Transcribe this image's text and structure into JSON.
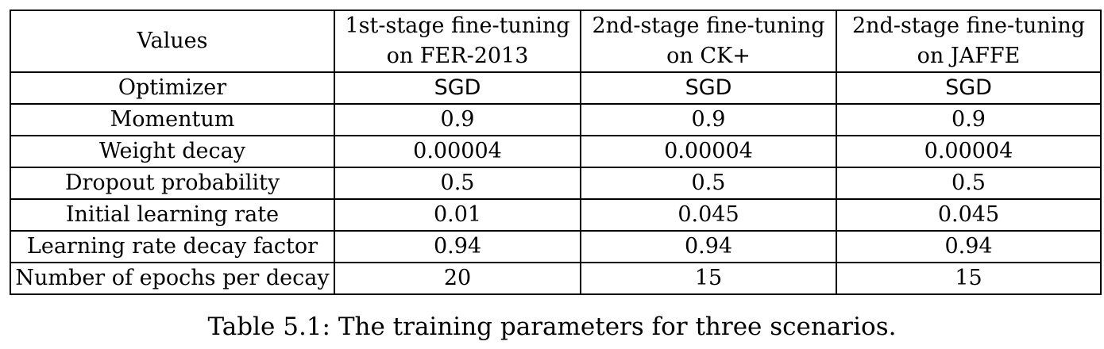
{
  "table": {
    "headers": [
      {
        "line1": "Values",
        "line2": ""
      },
      {
        "line1": "1st-stage fine-tuning",
        "line2": "on FER-2013"
      },
      {
        "line1": "2nd-stage fine-tuning",
        "line2": "on CK+"
      },
      {
        "line1": "2nd-stage fine-tuning",
        "line2": "on JAFFE"
      }
    ],
    "rows": [
      {
        "label": "Optimizer",
        "values": [
          "SGD",
          "SGD",
          "SGD"
        ]
      },
      {
        "label": "Momentum",
        "values": [
          "0.9",
          "0.9",
          "0.9"
        ]
      },
      {
        "label": "Weight decay",
        "values": [
          "0.00004",
          "0.00004",
          "0.00004"
        ]
      },
      {
        "label": "Dropout probability",
        "values": [
          "0.5",
          "0.5",
          "0.5"
        ]
      },
      {
        "label": "Initial learning rate",
        "values": [
          "0.01",
          "0.045",
          "0.045"
        ]
      },
      {
        "label": "Learning rate decay factor",
        "values": [
          "0.94",
          "0.94",
          "0.94"
        ]
      },
      {
        "label": "Number of epochs per decay",
        "values": [
          "20",
          "15",
          "15"
        ]
      }
    ]
  },
  "caption": "Table 5.1: The training parameters for three scenarios."
}
